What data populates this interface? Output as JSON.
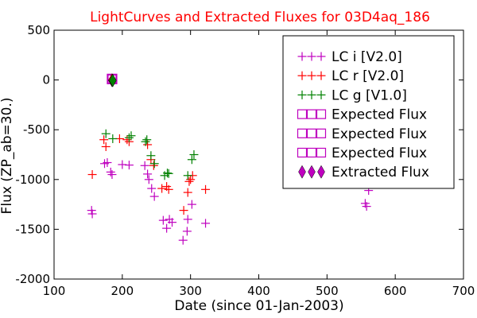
{
  "chart_data": {
    "type": "scatter",
    "title": "LightCurves and Extracted Fluxes for 03D4aq_186",
    "title_color": "#ff0000",
    "xlabel": "Date (since 01-Jan-2003)",
    "ylabel": "Flux (ZP_ab=30.)",
    "xlim": [
      100,
      700
    ],
    "ylim": [
      -2000,
      500
    ],
    "xticks": [
      100,
      200,
      300,
      400,
      500,
      600,
      700
    ],
    "yticks": [
      -2000,
      -1500,
      -1000,
      -500,
      0,
      500
    ],
    "grid": false,
    "legend_position": "top-right",
    "series": [
      {
        "name": "LC i [V2.0]",
        "color": "#bf00bf",
        "marker": "plus",
        "points": [
          [
            155,
            -1310
          ],
          [
            156,
            -1345
          ],
          [
            174,
            -840
          ],
          [
            178,
            -830
          ],
          [
            183,
            -925
          ],
          [
            185,
            -950
          ],
          [
            200,
            -850
          ],
          [
            210,
            -855
          ],
          [
            233,
            -860
          ],
          [
            237,
            -945
          ],
          [
            239,
            -1000
          ],
          [
            243,
            -1090
          ],
          [
            247,
            -1170
          ],
          [
            260,
            -1410
          ],
          [
            265,
            -1490
          ],
          [
            269,
            -1400
          ],
          [
            273,
            -1430
          ],
          [
            289,
            -1610
          ],
          [
            295,
            -1520
          ],
          [
            296,
            -1400
          ],
          [
            302,
            -1250
          ],
          [
            322,
            -1440
          ],
          [
            556,
            -1240
          ],
          [
            558,
            -1270
          ],
          [
            561,
            -1110
          ]
        ]
      },
      {
        "name": "LC r [V2.0]",
        "color": "#ff0000",
        "marker": "plus",
        "points": [
          [
            156,
            -950
          ],
          [
            173,
            -600
          ],
          [
            176,
            -670
          ],
          [
            196,
            -590
          ],
          [
            207,
            -600
          ],
          [
            210,
            -620
          ],
          [
            237,
            -650
          ],
          [
            242,
            -800
          ],
          [
            246,
            -860
          ],
          [
            258,
            -1090
          ],
          [
            265,
            -1070
          ],
          [
            268,
            -1100
          ],
          [
            290,
            -1310
          ],
          [
            296,
            -1130
          ],
          [
            298,
            -1020
          ],
          [
            300,
            -1000
          ],
          [
            303,
            -960
          ],
          [
            322,
            -1100
          ]
        ]
      },
      {
        "name": "LC g [V1.0]",
        "color": "#008000",
        "marker": "plus",
        "points": [
          [
            176,
            -540
          ],
          [
            186,
            -590
          ],
          [
            210,
            -580
          ],
          [
            213,
            -560
          ],
          [
            234,
            -620
          ],
          [
            236,
            -600
          ],
          [
            242,
            -760
          ],
          [
            247,
            -840
          ],
          [
            262,
            -960
          ],
          [
            266,
            -935
          ],
          [
            268,
            -940
          ],
          [
            296,
            -960
          ],
          [
            302,
            -800
          ],
          [
            305,
            -750
          ]
        ]
      }
    ],
    "expected_flux": [
      {
        "name": "Expected Flux",
        "color": "#bf00bf",
        "x": 185,
        "y": 10
      },
      {
        "name": "Expected Flux",
        "color": "#bf00bf",
        "x": 185,
        "y": 10
      },
      {
        "name": "Expected Flux",
        "color": "#bf00bf",
        "x": 185,
        "y": 10
      }
    ],
    "extracted_flux": {
      "name": "Extracted Flux",
      "color": "#bf00bf",
      "points": [
        {
          "x": 185,
          "y": -5,
          "color": "#bf00bf"
        },
        {
          "x": 185,
          "y": 0,
          "color": "#ff0000"
        },
        {
          "x": 186,
          "y": -5,
          "color": "#008000"
        }
      ]
    }
  }
}
